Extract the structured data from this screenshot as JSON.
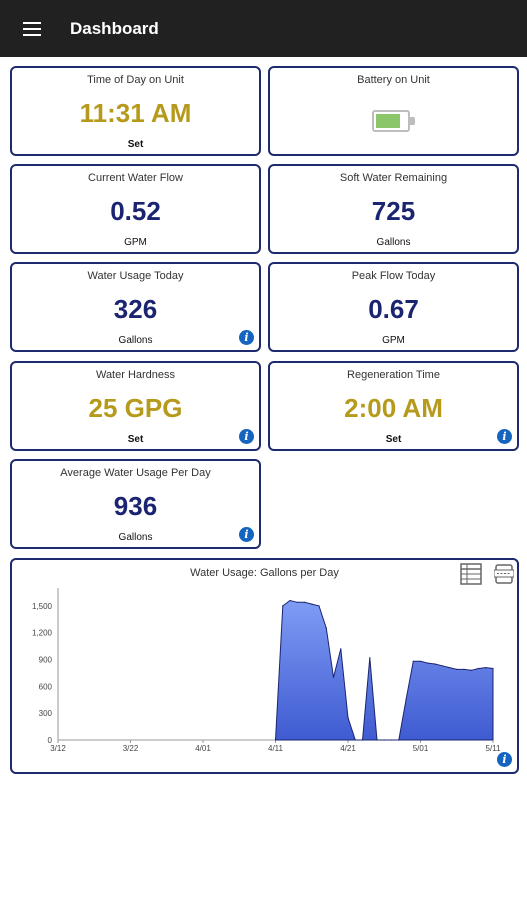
{
  "appbar": {
    "title": "Dashboard",
    "menu_icon": "hamburger-menu-icon"
  },
  "tiles": {
    "time": {
      "label": "Time of Day on Unit",
      "value": "11:31 AM",
      "sub": "Set"
    },
    "battery": {
      "label": "Battery on Unit",
      "level_fraction": 0.8
    },
    "flow": {
      "label": "Current Water Flow",
      "value": "0.52",
      "sub": "GPM"
    },
    "soft": {
      "label": "Soft Water Remaining",
      "value": "725",
      "sub": "Gallons"
    },
    "usage": {
      "label": "Water Usage Today",
      "value": "326",
      "sub": "Gallons"
    },
    "peak": {
      "label": "Peak Flow Today",
      "value": "0.67",
      "sub": "GPM"
    },
    "hardness": {
      "label": "Water Hardness",
      "value": "25 GPG",
      "sub": "Set"
    },
    "regen": {
      "label": "Regeneration Time",
      "value": "2:00 AM",
      "sub": "Set"
    },
    "avg": {
      "label": "Average Water Usage Per Day",
      "value": "936",
      "sub": "Gallons"
    }
  },
  "info_glyph": "i",
  "colors": {
    "gold": "#b59a1c",
    "navy": "#1b2470",
    "border": "#1e2a6e",
    "info": "#1565c0",
    "area": "#3f5bd1"
  },
  "chart_data": {
    "type": "area",
    "title": "Water Usage: Gallons per Day",
    "xlabel": "",
    "ylabel": "",
    "ylim": [
      0,
      1700
    ],
    "y_ticks": [
      "0",
      "300",
      "600",
      "900",
      "1,200",
      "1,500"
    ],
    "x_ticks": [
      "3/12",
      "3/22",
      "4/01",
      "4/11",
      "4/21",
      "5/01",
      "5/11"
    ],
    "x": [
      "4/11",
      "4/12",
      "4/13",
      "4/14",
      "4/15",
      "4/16",
      "4/17",
      "4/18",
      "4/19",
      "4/20",
      "4/21",
      "4/22",
      "4/23",
      "4/24",
      "4/25",
      "4/26",
      "4/27",
      "4/28",
      "4/29",
      "4/30",
      "5/01",
      "5/02",
      "5/03",
      "5/04",
      "5/05",
      "5/06",
      "5/07",
      "5/08",
      "5/09",
      "5/10",
      "5/11"
    ],
    "values": [
      0,
      1500,
      1560,
      1540,
      1540,
      1520,
      1500,
      1250,
      700,
      1020,
      250,
      0,
      0,
      920,
      0,
      0,
      0,
      0,
      450,
      880,
      880,
      860,
      850,
      830,
      810,
      790,
      790,
      780,
      800,
      810,
      800
    ],
    "grid": false
  }
}
